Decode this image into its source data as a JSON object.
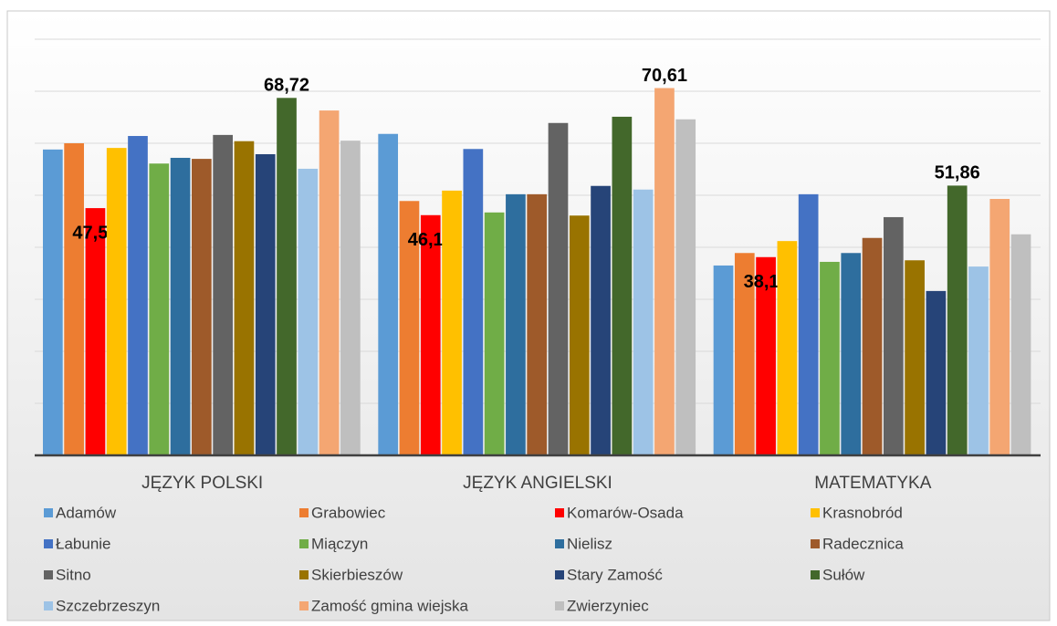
{
  "chart_data": {
    "type": "bar",
    "categories": [
      "JĘZYK POLSKI",
      "JĘZYK ANGIELSKI",
      "MATEMATYKA"
    ],
    "ylim": [
      0,
      80
    ],
    "yticks": [
      0,
      10,
      20,
      30,
      40,
      50,
      60,
      70,
      80
    ],
    "grid": true,
    "series": [
      {
        "name": "Adamów",
        "color": "#5b9bd5",
        "values": [
          58.8,
          61.8,
          36.5
        ]
      },
      {
        "name": "Grabowiec",
        "color": "#ed7d31",
        "values": [
          60.0,
          48.9,
          38.9
        ]
      },
      {
        "name": "Komarów-Osada",
        "color": "#ff0000",
        "values": [
          47.53,
          46.18,
          38.11
        ],
        "value_labels": [
          "47,53",
          "46,18",
          "38,11"
        ]
      },
      {
        "name": "Krasnobród",
        "color": "#ffc000",
        "values": [
          59.1,
          50.9,
          41.2
        ]
      },
      {
        "name": "Łabunie",
        "color": "#4472c4",
        "values": [
          61.4,
          58.9,
          50.2
        ]
      },
      {
        "name": "Miączyn",
        "color": "#70ad47",
        "values": [
          56.1,
          46.7,
          37.2
        ]
      },
      {
        "name": "Nielisz",
        "color": "#2e6e9e",
        "values": [
          57.2,
          50.2,
          38.9
        ]
      },
      {
        "name": "Radecznica",
        "color": "#9e5a2a",
        "values": [
          57.0,
          50.2,
          41.8
        ]
      },
      {
        "name": "Sitno",
        "color": "#636363",
        "values": [
          61.6,
          63.9,
          45.8
        ]
      },
      {
        "name": "Skierbieszów",
        "color": "#997300",
        "values": [
          60.4,
          46.1,
          37.5
        ]
      },
      {
        "name": "Stary Zamość",
        "color": "#264478",
        "values": [
          57.9,
          51.8,
          31.6
        ]
      },
      {
        "name": "Sułów",
        "color": "#43682b",
        "values": [
          68.72,
          65.1,
          51.86
        ],
        "value_labels": [
          "68,72",
          null,
          "51,86"
        ]
      },
      {
        "name": "Szczebrzeszyn",
        "color": "#9dc3e6",
        "values": [
          55.1,
          51.1,
          36.3
        ]
      },
      {
        "name": "Zamość gmina wiejska",
        "color": "#f4a672",
        "values": [
          66.3,
          70.61,
          49.3
        ],
        "value_labels": [
          null,
          "70,61",
          null
        ]
      },
      {
        "name": "Zwierzyniec",
        "color": "#bfbfbf",
        "values": [
          60.5,
          64.6,
          42.5
        ]
      }
    ]
  }
}
